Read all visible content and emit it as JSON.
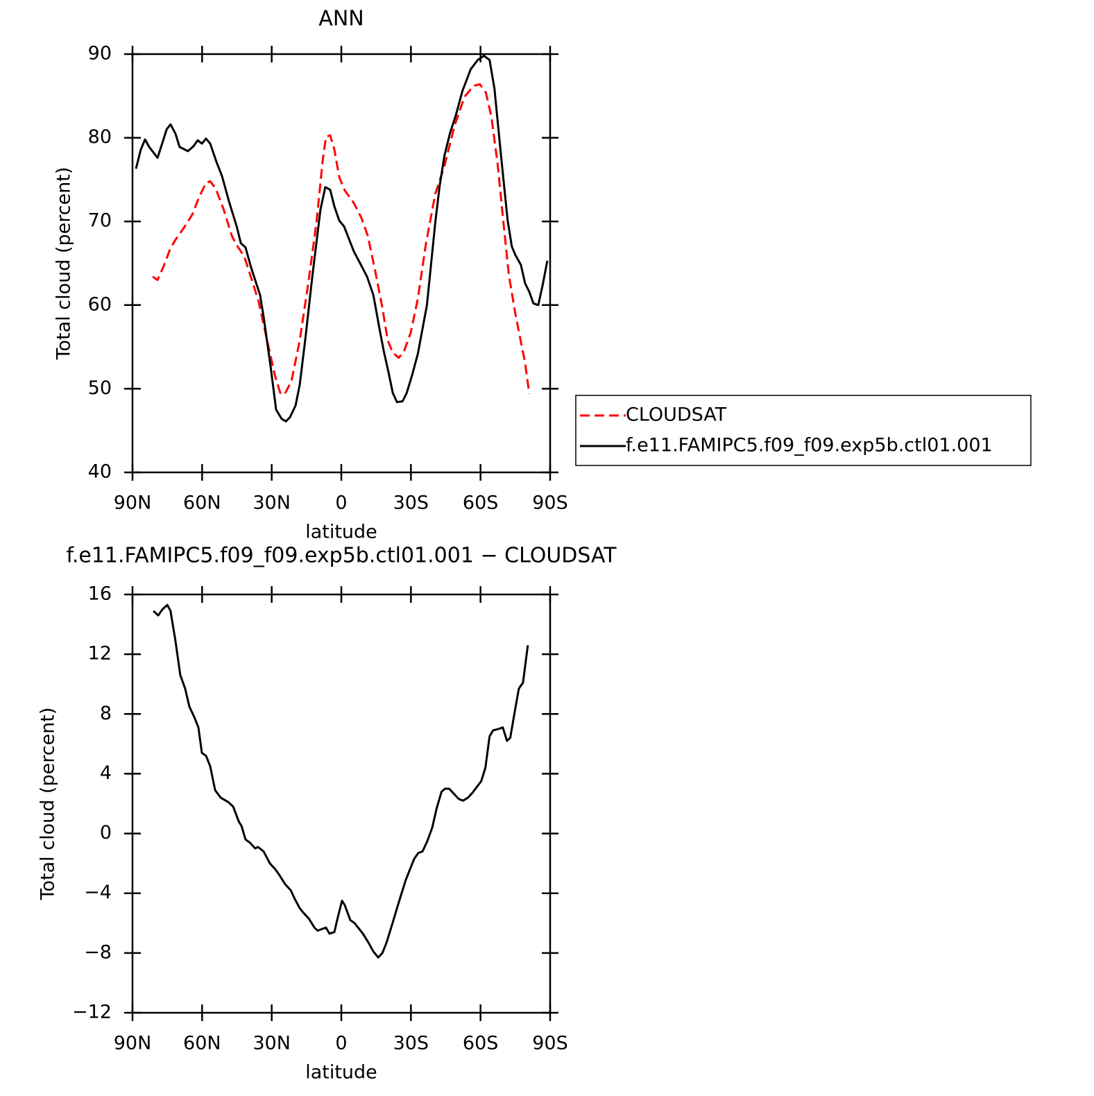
{
  "chart_data": [
    {
      "type": "line",
      "title": "ANN",
      "xlabel": "latitude",
      "ylabel": "Total cloud (percent)",
      "xlim": [
        90,
        -90
      ],
      "xticks": [
        {
          "value": 90,
          "label": "90N"
        },
        {
          "value": 60,
          "label": "60N"
        },
        {
          "value": 30,
          "label": "30N"
        },
        0,
        {
          "value": -30,
          "label": "30S"
        },
        {
          "value": -60,
          "label": "60S"
        },
        {
          "value": -90,
          "label": "90S"
        }
      ],
      "ylim": [
        40,
        90
      ],
      "yticks": [
        40,
        50,
        60,
        70,
        80,
        90
      ],
      "grid": false,
      "legend": "right",
      "series": [
        {
          "name": "CLOUDSAT",
          "color": "#ff0000",
          "linestyle": "dashed",
          "x": [
            81.3,
            79.2,
            76.5,
            73.8,
            71.5,
            67.9,
            64.3,
            61.3,
            58.3,
            56.5,
            54.1,
            50.8,
            47.2,
            45.4,
            41.8,
            38.9,
            35.6,
            32.0,
            28.7,
            26.3,
            24.5,
            21.5,
            17.9,
            14.3,
            10.7,
            8.0,
            6.6,
            4.8,
            3.0,
            0.9,
            -1.5,
            -5.4,
            -8.7,
            -11.4,
            -14.6,
            -17.6,
            -20.0,
            -22.2,
            -24.8,
            -27.2,
            -29.9,
            -33.0,
            -36.5,
            -40.5,
            -44.4,
            -48.9,
            -53.1,
            -57.0,
            -59.7,
            -62.3,
            -64.7,
            -67.4,
            -70.1,
            -72.2,
            -75.0,
            -77.4,
            -79.2,
            -81.0
          ],
          "values": [
            63.4,
            63.0,
            64.7,
            66.7,
            67.8,
            69.2,
            70.8,
            72.9,
            74.6,
            74.8,
            73.9,
            71.5,
            68.3,
            67.3,
            65.8,
            63.3,
            60.4,
            55.8,
            51.7,
            49.5,
            49.3,
            50.9,
            55.8,
            62.5,
            69.9,
            77.3,
            80.1,
            80.3,
            78.6,
            75.3,
            73.7,
            72.2,
            70.4,
            68.3,
            64.1,
            59.8,
            55.8,
            54.3,
            53.7,
            54.6,
            56.7,
            60.8,
            67.4,
            73.3,
            76.6,
            81.5,
            84.9,
            86.2,
            86.4,
            85.4,
            82.5,
            76.8,
            69.3,
            63.6,
            59.0,
            55.6,
            53.1,
            49.4
          ]
        },
        {
          "name": "f.e11.FAMIPC5.f09_f09.exp5b.ctl01.001",
          "color": "#000000",
          "linestyle": "solid",
          "x": [
            88.5,
            86.4,
            84.6,
            82.8,
            79.2,
            77.1,
            75.3,
            73.6,
            71.5,
            69.7,
            66.1,
            63.7,
            61.9,
            60.1,
            58.3,
            56.5,
            53.8,
            51.4,
            48.4,
            45.1,
            43.3,
            41.3,
            38.9,
            35.0,
            33.5,
            30.5,
            28.1,
            25.7,
            23.9,
            22.1,
            19.7,
            17.9,
            15.5,
            12.6,
            9.0,
            6.9,
            4.8,
            3.0,
            0.9,
            -1.2,
            -5.4,
            -8.1,
            -11.1,
            -13.8,
            -16.5,
            -18.3,
            -20.4,
            -22.2,
            -24.0,
            -26.4,
            -28.2,
            -30.6,
            -33.0,
            -36.9,
            -40.5,
            -42.3,
            -44.4,
            -46.8,
            -49.5,
            -52.2,
            -55.8,
            -58.8,
            -61.5,
            -63.9,
            -66.0,
            -69.0,
            -71.7,
            -73.5,
            -75.0,
            -77.4,
            -79.2,
            -81.0,
            -82.8,
            -84.9,
            -86.7,
            -88.8
          ],
          "values": [
            76.3,
            78.6,
            79.8,
            78.9,
            77.6,
            79.4,
            81.0,
            81.6,
            80.5,
            78.9,
            78.4,
            79.0,
            79.7,
            79.3,
            79.9,
            79.3,
            77.1,
            75.4,
            72.4,
            69.4,
            67.4,
            66.9,
            64.5,
            61.2,
            58.6,
            52.7,
            47.5,
            46.4,
            46.1,
            46.6,
            48.0,
            50.5,
            56.0,
            63.2,
            71.4,
            74.1,
            73.8,
            71.8,
            70.1,
            69.4,
            66.4,
            65.0,
            63.4,
            61.2,
            57.1,
            54.5,
            51.9,
            49.5,
            48.4,
            48.5,
            49.5,
            51.7,
            54.2,
            60.0,
            69.9,
            74.1,
            77.8,
            80.5,
            82.8,
            85.6,
            88.2,
            89.3,
            89.8,
            89.3,
            85.9,
            77.4,
            70.1,
            67.0,
            66.0,
            64.8,
            62.6,
            61.6,
            60.2,
            60.0,
            62.3,
            65.3
          ]
        }
      ]
    },
    {
      "type": "line",
      "title": "f.e11.FAMIPC5.f09_f09.exp5b.ctl01.001 − CLOUDSAT",
      "xlabel": "latitude",
      "ylabel": "Total cloud (percent)",
      "xlim": [
        90,
        -90
      ],
      "xticks": [
        {
          "value": 90,
          "label": "90N"
        },
        {
          "value": 60,
          "label": "60N"
        },
        {
          "value": 30,
          "label": "30N"
        },
        0,
        {
          "value": -30,
          "label": "30S"
        },
        {
          "value": -60,
          "label": "60S"
        },
        {
          "value": -90,
          "label": "90S"
        }
      ],
      "ylim": [
        -12,
        16
      ],
      "yticks": [
        {
          "value": -12,
          "label": "−12"
        },
        {
          "value": -8,
          "label": "−8"
        },
        {
          "value": -4,
          "label": "−4"
        },
        0,
        4,
        8,
        12,
        16
      ],
      "grid": false,
      "series": [
        {
          "color": "#000000",
          "linestyle": "solid",
          "x": [
            81.0,
            78.9,
            77.1,
            75.0,
            73.6,
            71.5,
            69.4,
            67.3,
            65.5,
            63.4,
            61.6,
            60.1,
            58.3,
            56.5,
            54.4,
            52.0,
            48.7,
            46.6,
            44.2,
            43.0,
            41.3,
            39.5,
            37.1,
            35.9,
            33.5,
            30.8,
            28.4,
            26.6,
            24.2,
            21.8,
            20.0,
            17.9,
            16.4,
            14.0,
            11.6,
            10.2,
            8.4,
            6.6,
            5.1,
            3.0,
            1.5,
            -0.3,
            -1.5,
            -3.9,
            -5.7,
            -9.3,
            -11.7,
            -13.8,
            -15.9,
            -17.7,
            -19.5,
            -21.9,
            -24.8,
            -27.8,
            -31.4,
            -33.2,
            -35.0,
            -37.1,
            -39.2,
            -41.1,
            -43.2,
            -44.7,
            -46.5,
            -48.9,
            -50.7,
            -52.5,
            -54.6,
            -56.4,
            -58.8,
            -60.3,
            -62.1,
            -63.9,
            -65.4,
            -67.8,
            -69.6,
            -71.4,
            -72.8,
            -74.7,
            -76.5,
            -78.3,
            -80.4
          ],
          "values": [
            14.9,
            14.6,
            15.0,
            15.3,
            14.9,
            12.9,
            10.6,
            9.7,
            8.5,
            7.8,
            7.1,
            5.4,
            5.2,
            4.5,
            2.9,
            2.4,
            2.1,
            1.8,
            0.8,
            0.5,
            -0.4,
            -0.6,
            -1.0,
            -0.9,
            -1.2,
            -2.0,
            -2.4,
            -2.8,
            -3.4,
            -3.8,
            -4.4,
            -5.0,
            -5.3,
            -5.7,
            -6.3,
            -6.5,
            -6.4,
            -6.3,
            -6.7,
            -6.6,
            -5.6,
            -4.5,
            -4.8,
            -5.8,
            -6.0,
            -6.7,
            -7.3,
            -7.9,
            -8.3,
            -8.0,
            -7.3,
            -6.1,
            -4.6,
            -3.1,
            -1.7,
            -1.3,
            -1.2,
            -0.5,
            0.4,
            1.7,
            2.8,
            3.0,
            3.0,
            2.6,
            2.3,
            2.2,
            2.4,
            2.7,
            3.2,
            3.5,
            4.4,
            6.5,
            6.9,
            7.0,
            7.1,
            6.2,
            6.4,
            8.1,
            9.7,
            10.1,
            12.6
          ]
        }
      ]
    }
  ]
}
